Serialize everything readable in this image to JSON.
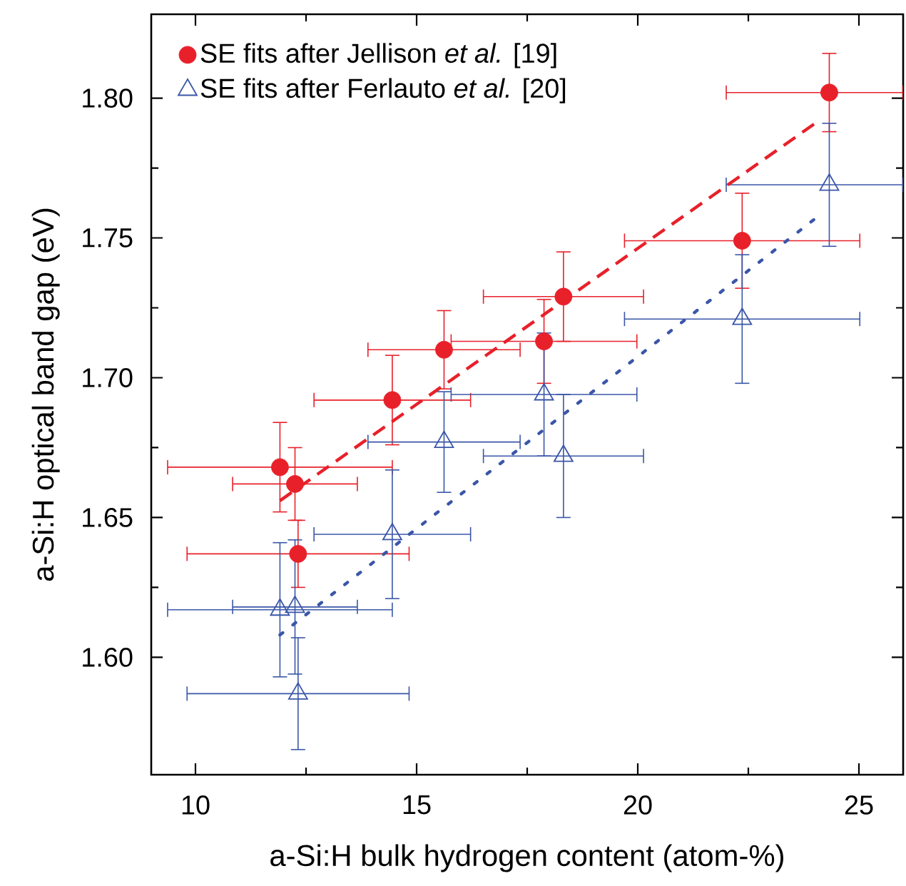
{
  "chart_data": {
    "type": "scatter",
    "xlabel": "a-Si:H bulk hydrogen content (atom-%)",
    "ylabel": "a-Si:H optical band gap (eV)",
    "xlim": [
      9,
      26
    ],
    "ylim": [
      1.558,
      1.83
    ],
    "xticks": [
      10,
      15,
      20,
      25
    ],
    "yticks": [
      {
        "value": 1.6,
        "label": "1.60"
      },
      1.65,
      {
        "value": 1.7,
        "label": "1.70"
      },
      1.75,
      {
        "value": 1.8,
        "label": "1.80"
      }
    ],
    "legend": "top left",
    "series": [
      {
        "name": "SE fits after Jellison *et al.* [19]",
        "type": "scatter",
        "marker": "circle",
        "color": "#e8202a",
        "x": [
          11.91,
          12.25,
          12.32,
          14.45,
          15.62,
          17.88,
          18.32,
          22.36,
          24.33
        ],
        "values": [
          1.668,
          1.662,
          1.637,
          1.692,
          1.71,
          1.713,
          1.729,
          1.749,
          1.802
        ],
        "errors": [
          0.016,
          0.013,
          0.012,
          0.016,
          0.014,
          0.015,
          0.016,
          0.017,
          0.014
        ],
        "xerrors": [
          2.54,
          1.41,
          2.51,
          1.77,
          1.72,
          2.1,
          1.81,
          2.66,
          [
            22.0,
            26.0
          ]
        ]
      },
      {
        "name": "SE fits after Ferlauto *et al.* [20]",
        "type": "scatter",
        "marker": "triangle",
        "color": "#3a56a8",
        "x": [
          11.91,
          12.25,
          12.32,
          14.45,
          15.62,
          17.88,
          18.32,
          22.36,
          24.33
        ],
        "values": [
          1.617,
          1.618,
          1.587,
          1.644,
          1.677,
          1.694,
          1.672,
          1.721,
          1.769
        ],
        "errors": [
          0.024,
          0.024,
          0.02,
          0.023,
          0.018,
          0.022,
          0.022,
          0.023,
          0.022
        ],
        "xerrors": [
          2.54,
          1.41,
          2.51,
          1.77,
          1.72,
          2.1,
          1.81,
          2.66,
          [
            22.0,
            26.0
          ]
        ]
      },
      {
        "type": "line",
        "line_style": "dashed",
        "color": "#e8202a",
        "x": [
          11.91,
          24.01
        ],
        "values": [
          1.656,
          1.791
        ]
      },
      {
        "type": "line",
        "line_style": "dotted",
        "color": "#3a56a8",
        "x": [
          11.91,
          24.1
        ],
        "values": [
          1.608,
          1.758
        ]
      }
    ]
  }
}
